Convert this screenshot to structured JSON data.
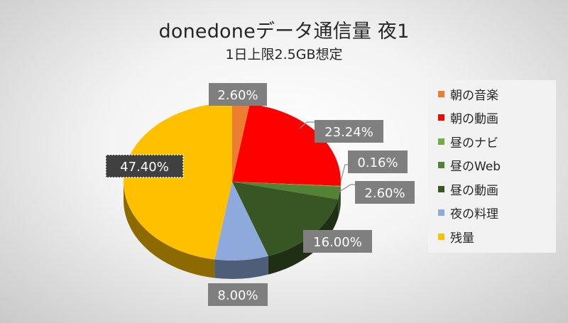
{
  "chart_data": {
    "type": "pie",
    "title": "donedoneデータ通信量 夜1",
    "subtitle": "1日上限2.5GB想定",
    "legend_position": "right",
    "slices": [
      {
        "label": "朝の音楽",
        "value": 2.6,
        "display": "2.60%",
        "color": "#ED7D31"
      },
      {
        "label": "朝の動画",
        "value": 23.24,
        "display": "23.24%",
        "color": "#FF0000"
      },
      {
        "label": "昼のナビ",
        "value": 0.16,
        "display": "0.16%",
        "color": "#70AD47"
      },
      {
        "label": "昼のWeb",
        "value": 2.6,
        "display": "2.60%",
        "color": "#548235"
      },
      {
        "label": "昼の動画",
        "value": 16.0,
        "display": "16.00%",
        "color": "#375623"
      },
      {
        "label": "夜の料理",
        "value": 8.0,
        "display": "8.00%",
        "color": "#8EA9DB"
      },
      {
        "label": "残量",
        "value": 47.4,
        "display": "47.40%",
        "color": "#FFC000"
      }
    ]
  }
}
